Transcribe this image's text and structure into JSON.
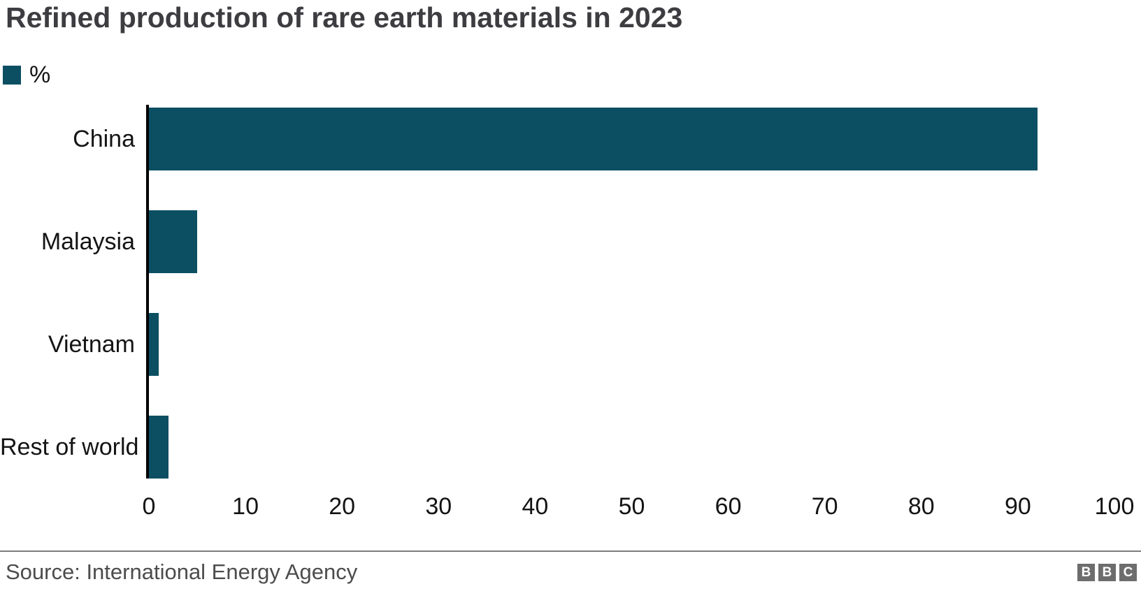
{
  "chart": {
    "title": "Refined production of rare earth materials in 2023",
    "legend_label": "%"
  },
  "chart_data": {
    "type": "bar",
    "orientation": "horizontal",
    "title": "Refined production of rare earth materials in 2023",
    "categories": [
      "China",
      "Malaysia",
      "Vietnam",
      "Rest of world"
    ],
    "values": [
      92,
      5,
      1,
      2
    ],
    "series_name": "%",
    "xlabel": "",
    "ylabel": "",
    "xlim": [
      0,
      100
    ],
    "xticks": [
      0,
      10,
      20,
      30,
      40,
      50,
      60,
      70,
      80,
      90,
      100
    ],
    "grid": false,
    "legend_position": "top-left",
    "bar_color": "#0c4f63"
  },
  "footer": {
    "source": "Source: International Energy Agency",
    "logo_letters": [
      "B",
      "B",
      "C"
    ]
  },
  "colors": {
    "bar": "#0c4f63",
    "title": "#3d3d41",
    "label": "#141414",
    "axis_line": "#000000",
    "divider": "#7c7c7c",
    "source_text": "#4c4c4c",
    "logo_bg": "#6d6d6d",
    "logo_letter": "#ffffff"
  }
}
